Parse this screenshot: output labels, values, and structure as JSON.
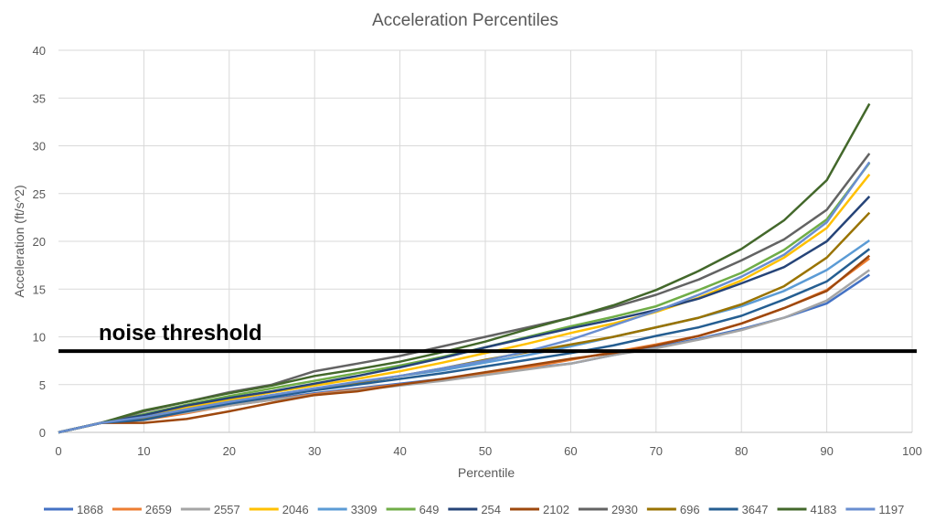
{
  "chart_data": {
    "type": "line",
    "title": "Acceleration Percentiles",
    "xlabel": "Percentile",
    "ylabel": "Acceleration (ft/s^2)",
    "xlim": [
      0,
      100
    ],
    "ylim": [
      0,
      40
    ],
    "x_ticks": [
      "0",
      "10",
      "20",
      "30",
      "40",
      "50",
      "60",
      "70",
      "80",
      "90",
      "100"
    ],
    "y_ticks": [
      "0",
      "5",
      "10",
      "15",
      "20",
      "25",
      "30",
      "35",
      "40"
    ],
    "grid": true,
    "legend_position": "bottom",
    "x": [
      0,
      5,
      10,
      15,
      20,
      25,
      30,
      35,
      40,
      45,
      50,
      55,
      60,
      65,
      70,
      75,
      80,
      85,
      90,
      95
    ],
    "series": [
      {
        "name": "1868",
        "color": "#4472C4",
        "values": [
          0,
          1.0,
          1.6,
          2.3,
          3.0,
          3.5,
          4.1,
          4.6,
          5.1,
          5.6,
          6.1,
          6.7,
          7.2,
          8.1,
          8.9,
          9.8,
          10.8,
          12.0,
          13.5,
          16.5
        ]
      },
      {
        "name": "2659",
        "color": "#ED7D31",
        "values": [
          0,
          1.0,
          1.3,
          2.0,
          2.8,
          3.4,
          4.0,
          4.5,
          5.0,
          5.5,
          6.1,
          6.8,
          7.6,
          8.4,
          9.2,
          10.1,
          11.4,
          13.0,
          14.9,
          18.2
        ]
      },
      {
        "name": "2557",
        "color": "#A5A5A5",
        "values": [
          0,
          1.0,
          1.5,
          2.1,
          2.8,
          3.4,
          3.9,
          4.4,
          4.9,
          5.4,
          6.0,
          6.6,
          7.2,
          8.1,
          8.8,
          9.7,
          10.7,
          12.0,
          13.8,
          17.0
        ]
      },
      {
        "name": "2046",
        "color": "#FFC000",
        "values": [
          0,
          1.0,
          1.7,
          2.6,
          3.4,
          4.2,
          4.9,
          5.6,
          6.4,
          7.3,
          8.3,
          9.3,
          10.4,
          11.4,
          12.6,
          14.1,
          15.9,
          18.3,
          21.4,
          27.0
        ]
      },
      {
        "name": "3309",
        "color": "#5B9BD5",
        "values": [
          0,
          1.0,
          1.6,
          2.4,
          3.2,
          3.9,
          4.6,
          5.2,
          5.9,
          6.5,
          7.3,
          8.1,
          9.0,
          10.0,
          11.0,
          12.0,
          13.2,
          14.8,
          17.0,
          20.1
        ]
      },
      {
        "name": "649",
        "color": "#70AD47",
        "values": [
          0,
          1.0,
          1.9,
          2.9,
          3.8,
          4.6,
          5.4,
          6.2,
          7.0,
          7.9,
          8.9,
          10.0,
          11.1,
          12.1,
          13.2,
          14.9,
          16.7,
          19.1,
          22.3,
          28.2
        ]
      },
      {
        "name": "254",
        "color": "#264478",
        "values": [
          0,
          1.0,
          1.8,
          2.8,
          3.6,
          4.3,
          5.1,
          5.9,
          6.8,
          7.8,
          8.9,
          9.9,
          10.9,
          11.8,
          12.8,
          14.0,
          15.6,
          17.3,
          20.0,
          24.7
        ]
      },
      {
        "name": "2102",
        "color": "#9E480E",
        "values": [
          0,
          1.0,
          1.0,
          1.4,
          2.2,
          3.1,
          3.9,
          4.3,
          5.0,
          5.6,
          6.3,
          7.0,
          7.7,
          8.3,
          9.1,
          10.1,
          11.4,
          13.0,
          14.8,
          18.5
        ]
      },
      {
        "name": "2930",
        "color": "#636363",
        "values": [
          0,
          1.0,
          2.2,
          3.2,
          4.2,
          5.0,
          6.4,
          7.2,
          8.0,
          9.0,
          10.0,
          11.0,
          12.0,
          13.1,
          14.4,
          16.0,
          18.0,
          20.2,
          23.3,
          29.2
        ]
      },
      {
        "name": "696",
        "color": "#997300",
        "values": [
          0,
          1.0,
          1.5,
          2.3,
          3.1,
          3.8,
          4.5,
          5.2,
          5.9,
          6.7,
          7.6,
          8.4,
          9.2,
          10.0,
          11.0,
          12.0,
          13.4,
          15.3,
          18.3,
          23.0
        ]
      },
      {
        "name": "3647",
        "color": "#255E91",
        "values": [
          0,
          1.0,
          1.3,
          2.2,
          3.0,
          3.7,
          4.4,
          5.0,
          5.6,
          6.2,
          6.9,
          7.6,
          8.3,
          9.1,
          10.1,
          11.0,
          12.2,
          13.9,
          15.8,
          19.2
        ]
      },
      {
        "name": "4183",
        "color": "#43682B",
        "values": [
          0,
          1.0,
          2.3,
          3.2,
          4.1,
          4.9,
          5.9,
          6.6,
          7.4,
          8.4,
          9.5,
          10.8,
          12.0,
          13.3,
          14.9,
          16.9,
          19.2,
          22.2,
          26.4,
          34.4
        ]
      },
      {
        "name": "1197",
        "color": "#698ED0",
        "values": [
          0,
          1.0,
          1.6,
          2.4,
          3.2,
          3.9,
          4.6,
          5.3,
          5.9,
          6.7,
          7.5,
          8.5,
          9.7,
          11.2,
          12.7,
          14.4,
          16.3,
          18.6,
          22.0,
          28.3
        ]
      }
    ],
    "annotations": [
      {
        "text": "noise threshold",
        "y": 8.5,
        "line_color": "#000000"
      }
    ]
  }
}
